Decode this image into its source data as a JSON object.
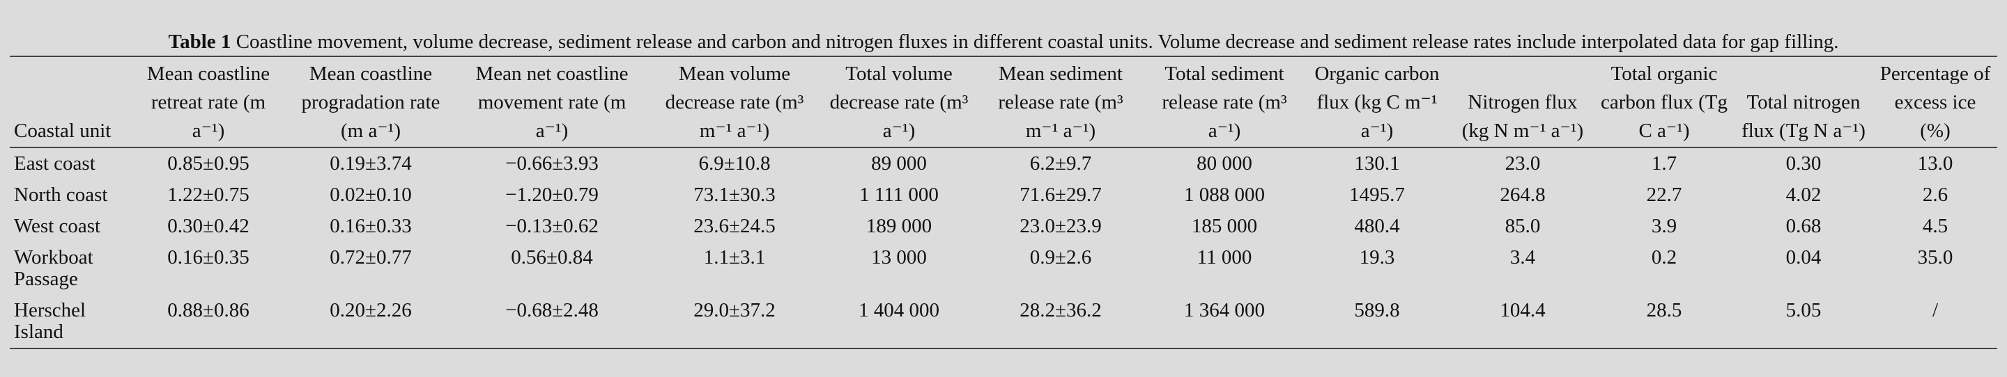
{
  "caption": {
    "label": "Table 1",
    "text": " Coastline movement, volume decrease, sediment release and carbon and nitrogen fluxes in different coastal units. Volume decrease and sediment release rates include interpolated data for gap filling."
  },
  "headers": [
    "Coastal unit",
    "Mean coastline retreat rate (m a⁻¹)",
    "Mean coastline progradation rate (m a⁻¹)",
    "Mean net coastline movement rate (m a⁻¹)",
    "Mean volume decrease rate (m³ m⁻¹ a⁻¹)",
    "Total volume decrease rate (m³ a⁻¹)",
    "Mean sediment release rate (m³ m⁻¹ a⁻¹)",
    "Total sediment release rate (m³ a⁻¹)",
    "Organic carbon flux (kg C m⁻¹ a⁻¹)",
    "Nitrogen flux (kg N m⁻¹ a⁻¹)",
    "Total organic carbon flux (Tg C a⁻¹)",
    "Total nitrogen flux (Tg N a⁻¹)",
    "Percentage of excess ice (%)"
  ],
  "rows": [
    [
      "East coast",
      "0.85±0.95",
      "0.19±3.74",
      "−0.66±3.93",
      "6.9±10.8",
      "89 000",
      "6.2±9.7",
      "80 000",
      "130.1",
      "23.0",
      "1.7",
      "0.30",
      "13.0"
    ],
    [
      "North coast",
      "1.22±0.75",
      "0.02±0.10",
      "−1.20±0.79",
      "73.1±30.3",
      "1 111 000",
      "71.6±29.7",
      "1 088 000",
      "1495.7",
      "264.8",
      "22.7",
      "4.02",
      "2.6"
    ],
    [
      "West coast",
      "0.30±0.42",
      "0.16±0.33",
      "−0.13±0.62",
      "23.6±24.5",
      "189 000",
      "23.0±23.9",
      "185 000",
      "480.4",
      "85.0",
      "3.9",
      "0.68",
      "4.5"
    ],
    [
      "Workboat Passage",
      "0.16±0.35",
      "0.72±0.77",
      "0.56±0.84",
      "1.1±3.1",
      "13 000",
      "0.9±2.6",
      "11 000",
      "19.3",
      "3.4",
      "0.2",
      "0.04",
      "35.0"
    ],
    [
      "Herschel Island",
      "0.88±0.86",
      "0.20±2.26",
      "−0.68±2.48",
      "29.0±37.2",
      "1 404 000",
      "28.2±36.2",
      "1 364 000",
      "589.8",
      "104.4",
      "28.5",
      "5.05",
      "/"
    ]
  ]
}
